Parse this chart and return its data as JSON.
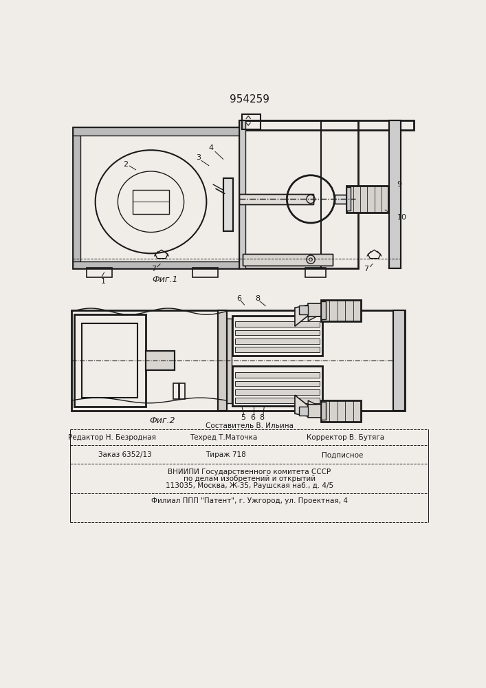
{
  "patent_number": "954259",
  "bg": "#f0ede8",
  "lc": "#1a1a1a",
  "fig1_label": "Фиг.1",
  "fig2_label": "Фиг.2",
  "footer": {
    "composer": "Составитель В. Ильина",
    "editor": "Редактор Н. Безродная",
    "techred": "Техред Т.Маточка",
    "corrector": "Корректор В. Бутяга",
    "order": "Заказ 6352/13",
    "tirazh": "Тираж 718",
    "podpisnoe": "Подписное",
    "vniip1": "ВНИИПИ Государственного комитета СССР",
    "vniip2": "по делам изобретений и открытий",
    "vniip3": "113035, Москва, Ж-35, Раушская наб., д. 4/5",
    "filial": "Филиал ППП \"Патент\", г. Ужгород, ул. Проектная, 4"
  }
}
